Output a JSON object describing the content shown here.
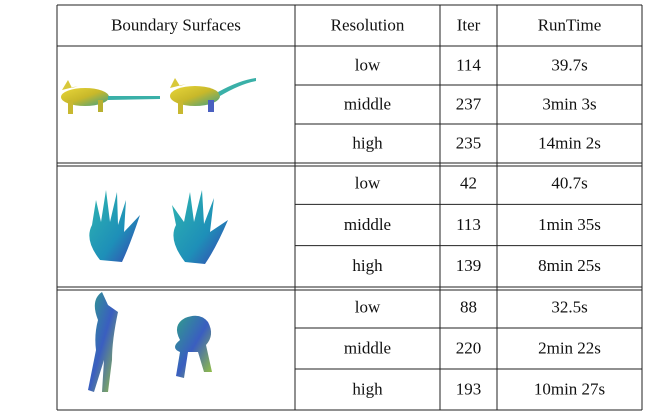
{
  "table": {
    "header": [
      "Boundary Surfaces",
      "Resolution",
      "Iter",
      "RunTime"
    ],
    "groups": [
      {
        "rows": [
          [
            "low",
            114,
            "39.7s"
          ],
          [
            "middle",
            237,
            "3min 3s"
          ],
          [
            "high",
            235,
            "14min 2s"
          ]
        ]
      },
      {
        "rows": [
          [
            "low",
            42,
            "40.7s"
          ],
          [
            "middle",
            113,
            "1min 35s"
          ],
          [
            "high",
            139,
            "8min 25s"
          ]
        ]
      },
      {
        "rows": [
          [
            "low",
            88,
            "32.5s"
          ],
          [
            "middle",
            220,
            "2min 22s"
          ],
          [
            "high",
            193,
            "10min 27s"
          ]
        ]
      }
    ]
  }
}
